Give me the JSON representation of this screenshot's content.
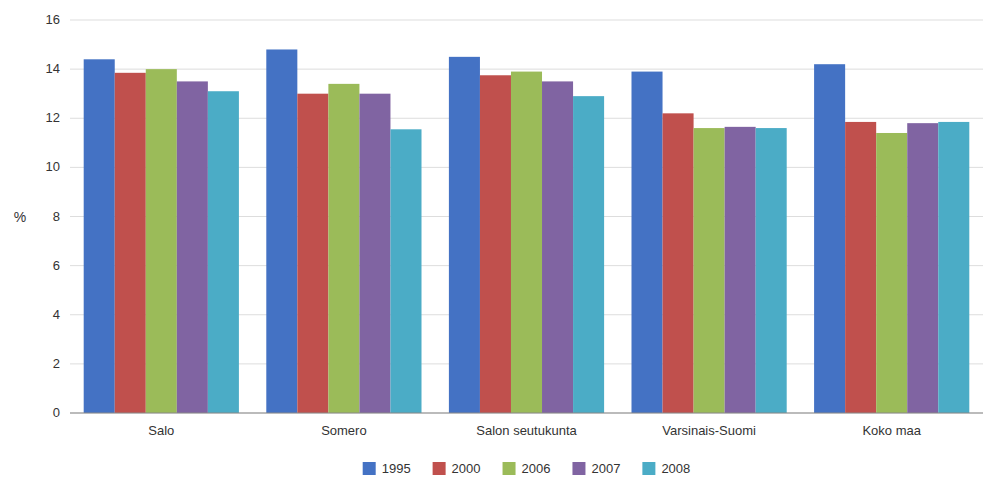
{
  "chart_data": {
    "type": "bar",
    "categories": [
      "Salo",
      "Somero",
      "Salon seutukunta",
      "Varsinais-Suomi",
      "Koko maa"
    ],
    "series": [
      {
        "name": "1995",
        "color": "#4472C4",
        "values": [
          14.4,
          14.8,
          14.5,
          13.9,
          14.2
        ]
      },
      {
        "name": "2000",
        "color": "#C0504D",
        "values": [
          13.85,
          13.0,
          13.75,
          12.2,
          11.85
        ]
      },
      {
        "name": "2006",
        "color": "#9BBB59",
        "values": [
          14.0,
          13.4,
          13.9,
          11.6,
          11.4
        ]
      },
      {
        "name": "2007",
        "color": "#8064A2",
        "values": [
          13.5,
          13.0,
          13.5,
          11.65,
          11.8
        ]
      },
      {
        "name": "2008",
        "color": "#4BACC6",
        "values": [
          13.1,
          11.55,
          12.9,
          11.6,
          11.85
        ]
      }
    ],
    "ylabel": "%",
    "ylim": [
      0,
      16
    ],
    "yticks": [
      0,
      2,
      4,
      6,
      8,
      10,
      12,
      14,
      16
    ],
    "grid": true,
    "legend": "bottom"
  }
}
